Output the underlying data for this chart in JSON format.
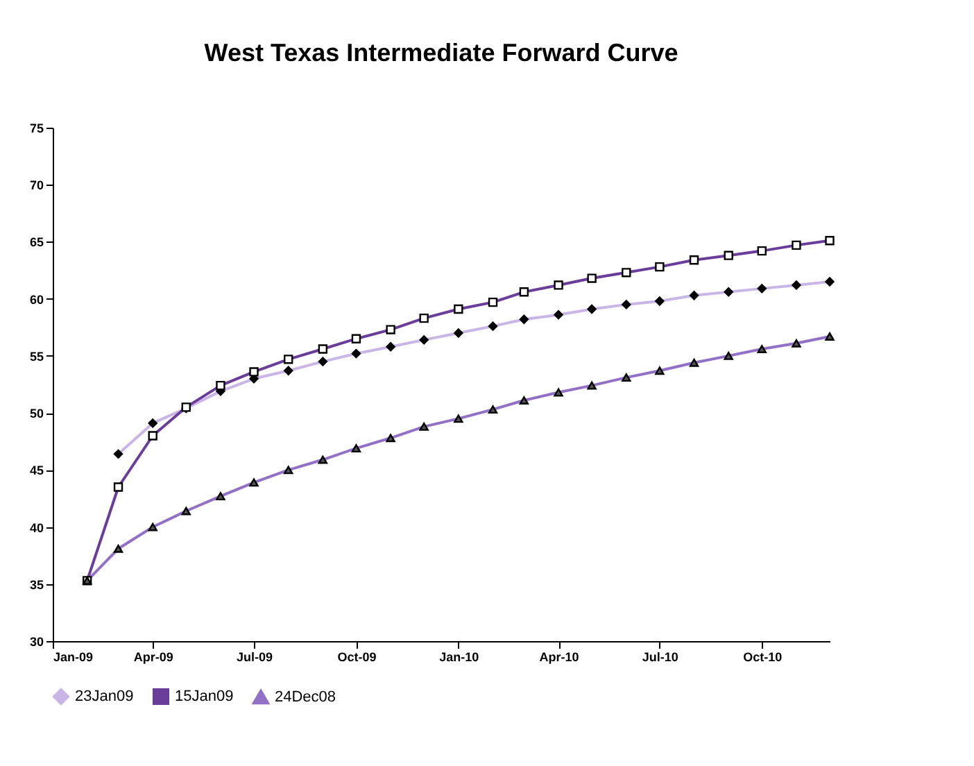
{
  "chart_data": {
    "type": "line",
    "title": "West Texas Intermediate Forward Curve",
    "x": [
      "2009-02",
      "2009-03",
      "2009-04",
      "2009-05",
      "2009-06",
      "2009-07",
      "2009-08",
      "2009-09",
      "2009-10",
      "2009-11",
      "2009-12",
      "2010-01",
      "2010-02",
      "2010-03",
      "2010-04",
      "2010-05",
      "2010-06",
      "2010-07",
      "2010-08",
      "2010-09",
      "2010-10",
      "2010-11",
      "2010-12"
    ],
    "series": [
      {
        "name": "23Jan09",
        "color": "#c9b6e6",
        "marker": "diamond",
        "values": [
          null,
          46.4,
          49.1,
          50.4,
          51.9,
          53.0,
          53.7,
          54.5,
          55.2,
          55.8,
          56.4,
          57.0,
          57.6,
          58.2,
          58.6,
          59.1,
          59.5,
          59.8,
          60.3,
          60.6,
          60.9,
          61.2,
          61.5
        ]
      },
      {
        "name": "15Jan09",
        "color": "#6a3d9a",
        "marker": "square",
        "values": [
          35.3,
          43.5,
          48.0,
          50.5,
          52.4,
          53.6,
          54.7,
          55.6,
          56.5,
          57.3,
          58.3,
          59.1,
          59.7,
          60.6,
          61.2,
          61.8,
          62.3,
          62.8,
          63.4,
          63.8,
          64.2,
          64.7,
          65.1
        ]
      },
      {
        "name": "24Dec08",
        "color": "#9370c8",
        "marker": "triangle",
        "values": [
          35.3,
          38.1,
          40.0,
          41.4,
          42.7,
          43.9,
          45.0,
          45.9,
          46.9,
          47.8,
          48.8,
          49.5,
          50.3,
          51.1,
          51.8,
          52.4,
          53.1,
          53.7,
          54.4,
          55.0,
          55.6,
          56.1,
          56.7
        ]
      }
    ],
    "xlim": [
      "2009-01",
      "2010-12"
    ],
    "xticks": [
      {
        "value": "2009-01",
        "label": "Jan-09"
      },
      {
        "value": "2009-04",
        "label": "Apr-09"
      },
      {
        "value": "2009-07",
        "label": "Jul-09"
      },
      {
        "value": "2009-10",
        "label": "Oct-09"
      },
      {
        "value": "2010-01",
        "label": "Jan-10"
      },
      {
        "value": "2010-04",
        "label": "Apr-10"
      },
      {
        "value": "2010-07",
        "label": "Jul-10"
      },
      {
        "value": "2010-10",
        "label": "Oct-10"
      }
    ],
    "ylim": [
      30,
      75
    ],
    "yticks": [
      30,
      35,
      40,
      45,
      50,
      55,
      60,
      65,
      70,
      75
    ],
    "grid": false,
    "legend": "bottom"
  }
}
